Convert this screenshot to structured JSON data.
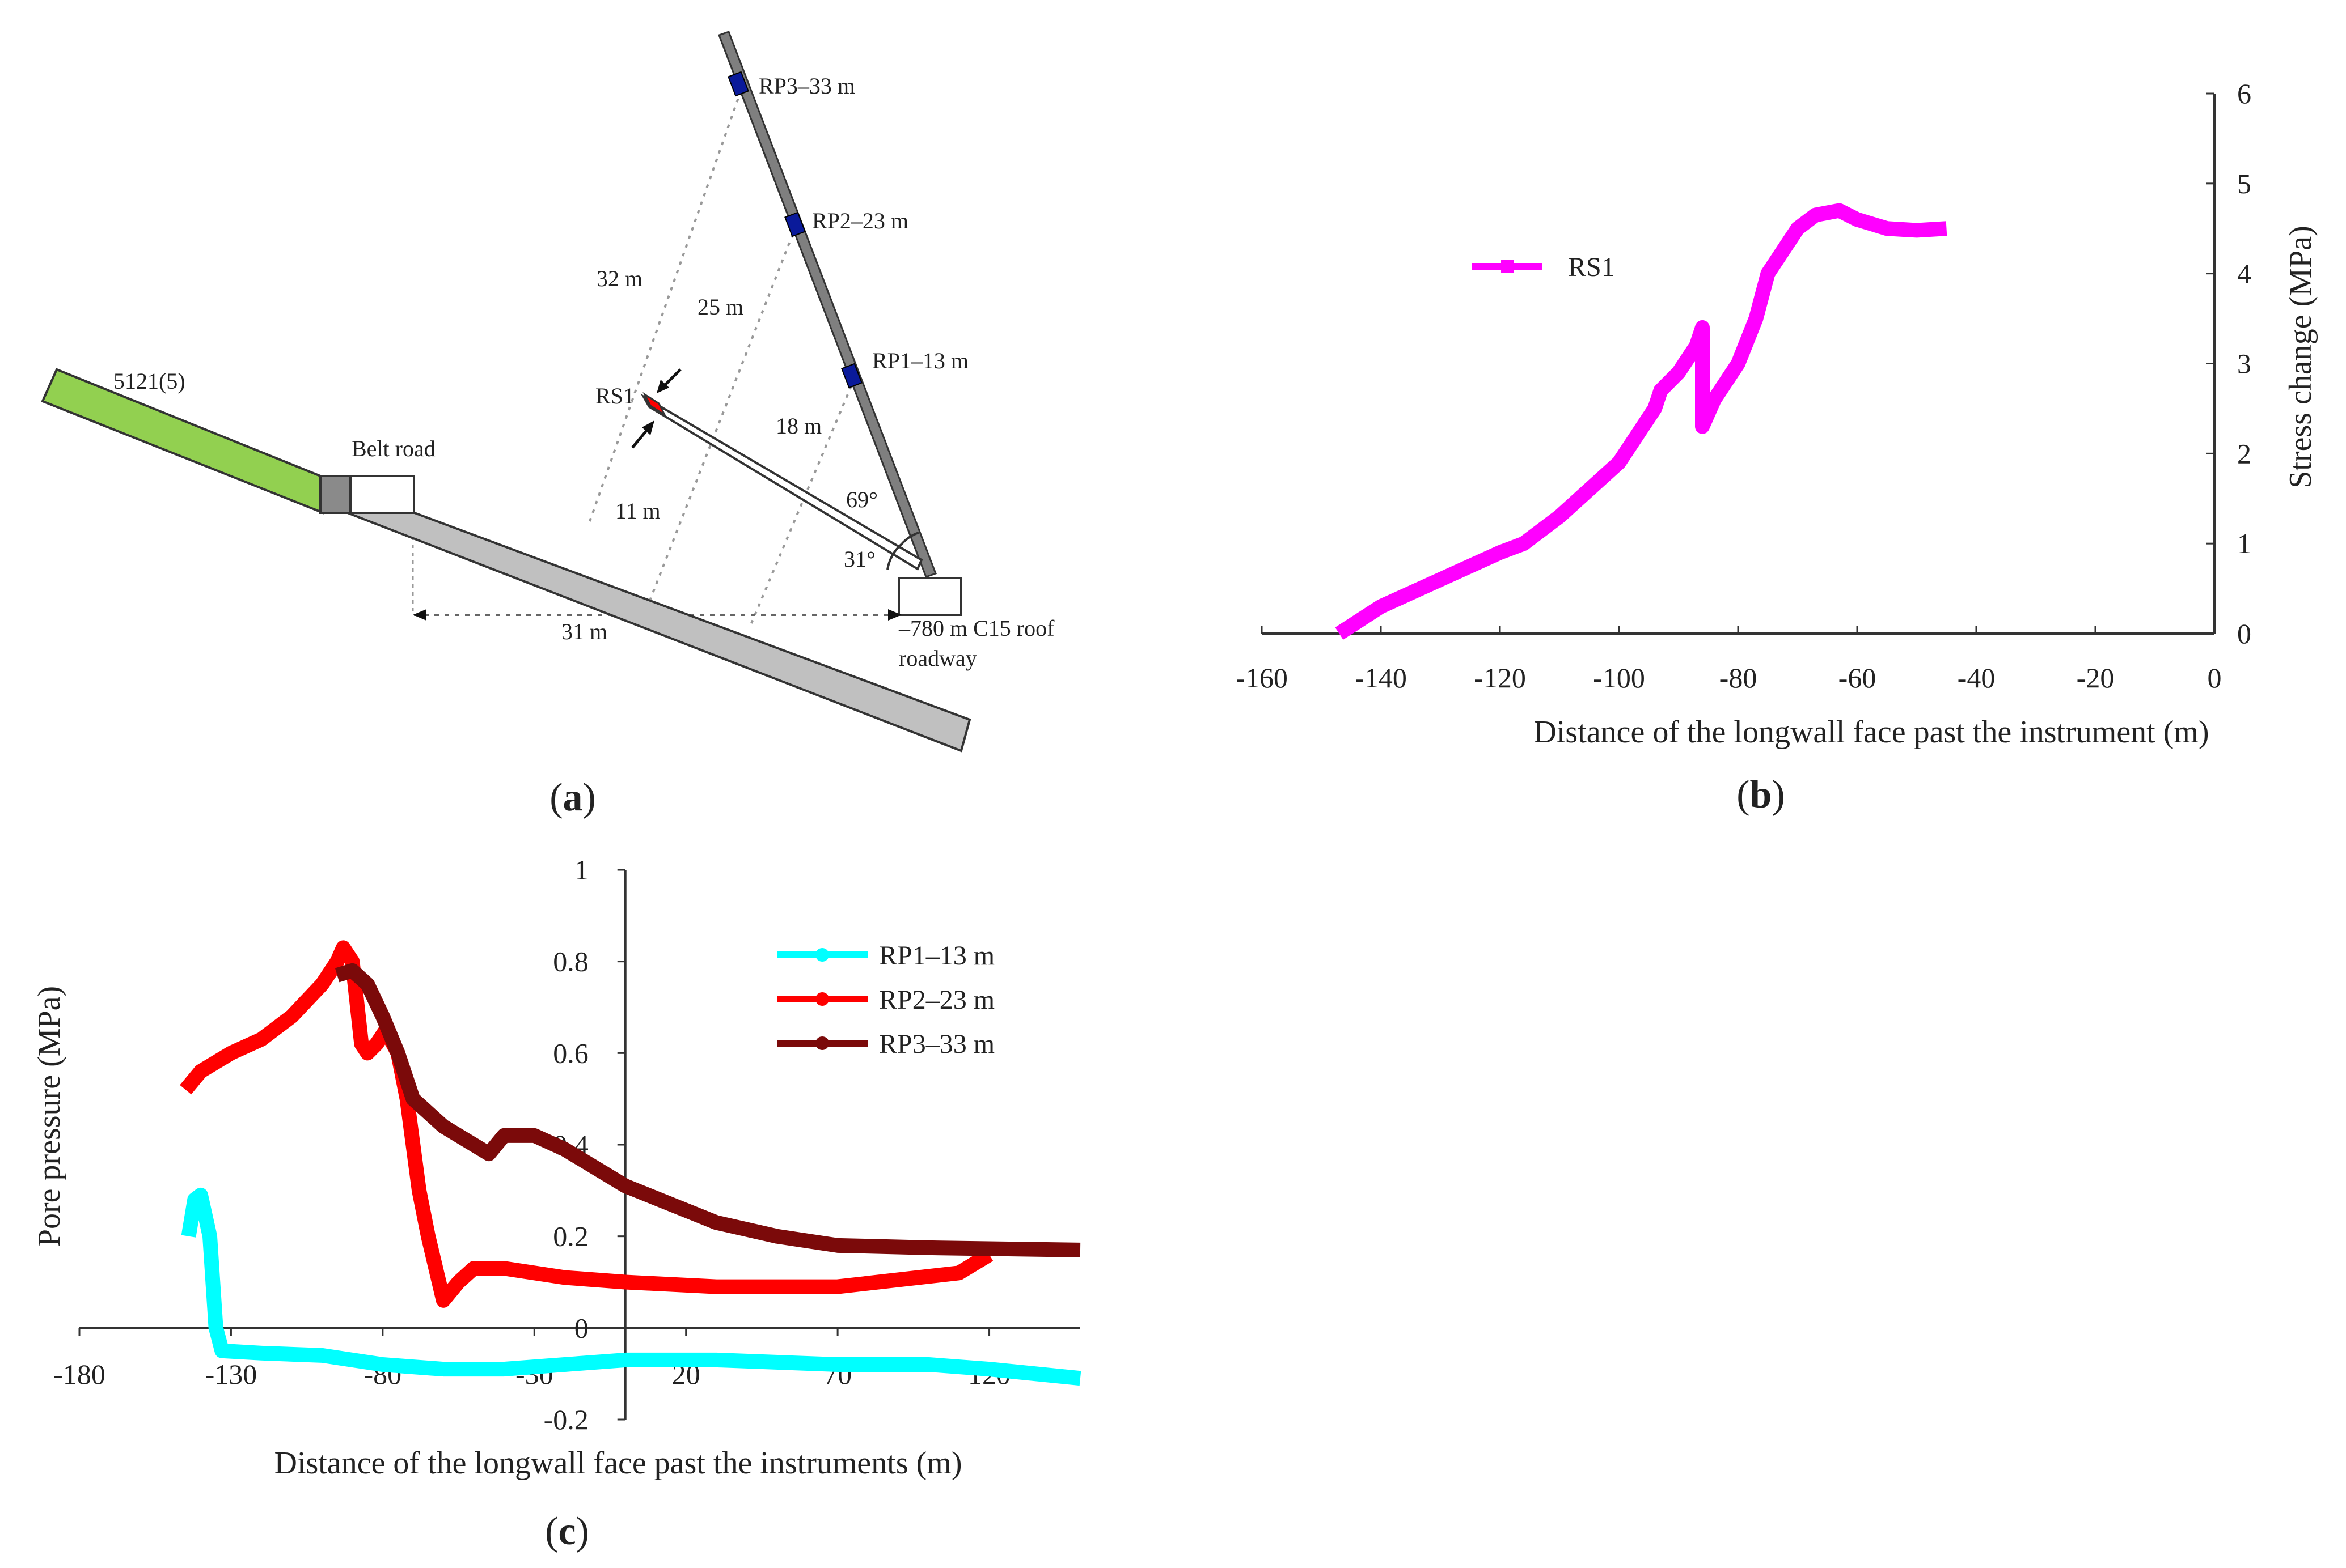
{
  "panel_a": {
    "caption_letter": "a",
    "labels": {
      "seam": "5121(5)",
      "belt_road": "Belt road",
      "rs1": "RS1",
      "rp3": "RP3–33 m",
      "rp2": "RP2–23 m",
      "rp1": "RP1–13 m",
      "d32": "32 m",
      "d25": "25 m",
      "d18": "18 m",
      "d11": "11 m",
      "angle69": "69°",
      "angle31": "31°",
      "dist31": "31 m",
      "roadway_line1": "–780 m C15 roof",
      "roadway_line2": "roadway"
    },
    "colors": {
      "green": "#92d050",
      "gray": "#c0c0c0",
      "red": "#ff0000",
      "blue": "#0a1a9a"
    }
  },
  "panel_b": {
    "caption_letter": "b"
  },
  "panel_c": {
    "caption_letter": "c"
  },
  "chart_data": [
    {
      "id": "b",
      "type": "line",
      "xlabel": "Distance of the longwall face past the instrument (m)",
      "ylabel": "Stress change (MPa)",
      "xlim": [
        -160,
        0
      ],
      "ylim": [
        0,
        6
      ],
      "xticks": [
        "-160",
        "-140",
        "-120",
        "-100",
        "-80",
        "-60",
        "-40",
        "-20",
        "0"
      ],
      "yticks": [
        "0",
        "1",
        "2",
        "3",
        "4",
        "5",
        "6"
      ],
      "legend_position": "top-left",
      "series": [
        {
          "name": "RS1",
          "color": "#ff00ff",
          "points": [
            [
              -147,
              0
            ],
            [
              -140,
              0.3
            ],
            [
              -130,
              0.6
            ],
            [
              -120,
              0.9
            ],
            [
              -116,
              1.0
            ],
            [
              -110,
              1.3
            ],
            [
              -105,
              1.6
            ],
            [
              -100,
              1.9
            ],
            [
              -97,
              2.2
            ],
            [
              -94,
              2.5
            ],
            [
              -93,
              2.7
            ],
            [
              -90,
              2.9
            ],
            [
              -87,
              3.2
            ],
            [
              -86,
              3.4
            ],
            [
              -86,
              2.3
            ],
            [
              -84,
              2.6
            ],
            [
              -80,
              3.0
            ],
            [
              -77,
              3.5
            ],
            [
              -75,
              4.0
            ],
            [
              -73,
              4.2
            ],
            [
              -70,
              4.5
            ],
            [
              -67,
              4.65
            ],
            [
              -63,
              4.7
            ],
            [
              -60,
              4.6
            ],
            [
              -55,
              4.5
            ],
            [
              -50,
              4.48
            ],
            [
              -45,
              4.5
            ]
          ]
        }
      ]
    },
    {
      "id": "c",
      "type": "line",
      "xlabel": "Distance of the longwall face past the instruments (m)",
      "ylabel": "Pore pressure (MPa)",
      "xlim": [
        -180,
        150
      ],
      "ylim": [
        -0.2,
        1.0
      ],
      "xticks": [
        "-180",
        "-130",
        "-80",
        "-30",
        "20",
        "70",
        "120"
      ],
      "yticks": [
        "-0.2",
        "0",
        "0.2",
        "0.4",
        "0.6",
        "0.8",
        "1"
      ],
      "legend_position": "top-right",
      "series": [
        {
          "name": "RP1–13 m",
          "color": "#00ffff",
          "points": [
            [
              -144,
              0.2
            ],
            [
              -142,
              0.28
            ],
            [
              -140,
              0.29
            ],
            [
              -137,
              0.2
            ],
            [
              -135,
              0.0
            ],
            [
              -133,
              -0.05
            ],
            [
              -120,
              -0.055
            ],
            [
              -100,
              -0.06
            ],
            [
              -80,
              -0.08
            ],
            [
              -60,
              -0.09
            ],
            [
              -40,
              -0.09
            ],
            [
              -20,
              -0.08
            ],
            [
              0,
              -0.07
            ],
            [
              30,
              -0.07
            ],
            [
              70,
              -0.08
            ],
            [
              100,
              -0.08
            ],
            [
              120,
              -0.09
            ],
            [
              150,
              -0.11
            ]
          ]
        },
        {
          "name": "RP2–23 m",
          "color": "#ff0000",
          "points": [
            [
              -145,
              0.52
            ],
            [
              -140,
              0.56
            ],
            [
              -130,
              0.6
            ],
            [
              -120,
              0.63
            ],
            [
              -110,
              0.68
            ],
            [
              -100,
              0.75
            ],
            [
              -95,
              0.8
            ],
            [
              -93,
              0.83
            ],
            [
              -90,
              0.8
            ],
            [
              -87,
              0.62
            ],
            [
              -85,
              0.6
            ],
            [
              -82,
              0.62
            ],
            [
              -79,
              0.65
            ],
            [
              -75,
              0.6
            ],
            [
              -72,
              0.5
            ],
            [
              -68,
              0.3
            ],
            [
              -65,
              0.2
            ],
            [
              -60,
              0.06
            ],
            [
              -55,
              0.1
            ],
            [
              -50,
              0.13
            ],
            [
              -40,
              0.13
            ],
            [
              -20,
              0.11
            ],
            [
              0,
              0.1
            ],
            [
              30,
              0.09
            ],
            [
              70,
              0.09
            ],
            [
              110,
              0.12
            ],
            [
              120,
              0.16
            ]
          ]
        },
        {
          "name": "RP3–33 m",
          "color": "#7b0a0a",
          "points": [
            [
              -95,
              0.77
            ],
            [
              -90,
              0.78
            ],
            [
              -85,
              0.75
            ],
            [
              -80,
              0.68
            ],
            [
              -75,
              0.6
            ],
            [
              -70,
              0.5
            ],
            [
              -60,
              0.44
            ],
            [
              -50,
              0.4
            ],
            [
              -45,
              0.38
            ],
            [
              -40,
              0.42
            ],
            [
              -30,
              0.42
            ],
            [
              -20,
              0.39
            ],
            [
              -10,
              0.35
            ],
            [
              0,
              0.31
            ],
            [
              30,
              0.23
            ],
            [
              50,
              0.2
            ],
            [
              70,
              0.18
            ],
            [
              100,
              0.175
            ],
            [
              150,
              0.17
            ]
          ]
        }
      ]
    }
  ]
}
